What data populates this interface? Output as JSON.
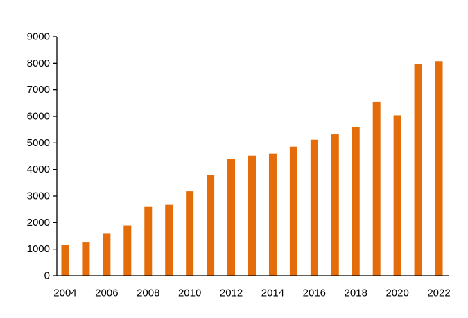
{
  "chart_data": {
    "type": "bar",
    "title": "",
    "xlabel": "",
    "ylabel": "",
    "x": [
      2004,
      2005,
      2006,
      2007,
      2008,
      2009,
      2010,
      2011,
      2012,
      2013,
      2014,
      2015,
      2016,
      2017,
      2018,
      2019,
      2020,
      2021,
      2022
    ],
    "values": [
      1150,
      1250,
      1580,
      1890,
      2590,
      2670,
      3180,
      3800,
      4410,
      4520,
      4600,
      4860,
      5120,
      5320,
      5610,
      6550,
      6040,
      7970,
      8080
    ],
    "x_tick_labels": [
      "2004",
      "2006",
      "2008",
      "2010",
      "2012",
      "2014",
      "2016",
      "2018",
      "2020",
      "2022"
    ],
    "y_ticks": [
      0,
      1000,
      2000,
      3000,
      4000,
      5000,
      6000,
      7000,
      8000,
      9000
    ],
    "ylim": [
      0,
      9000
    ],
    "grid": false,
    "legend": "none",
    "bar_color": "#E46C0A",
    "axis_color": "#000000"
  }
}
